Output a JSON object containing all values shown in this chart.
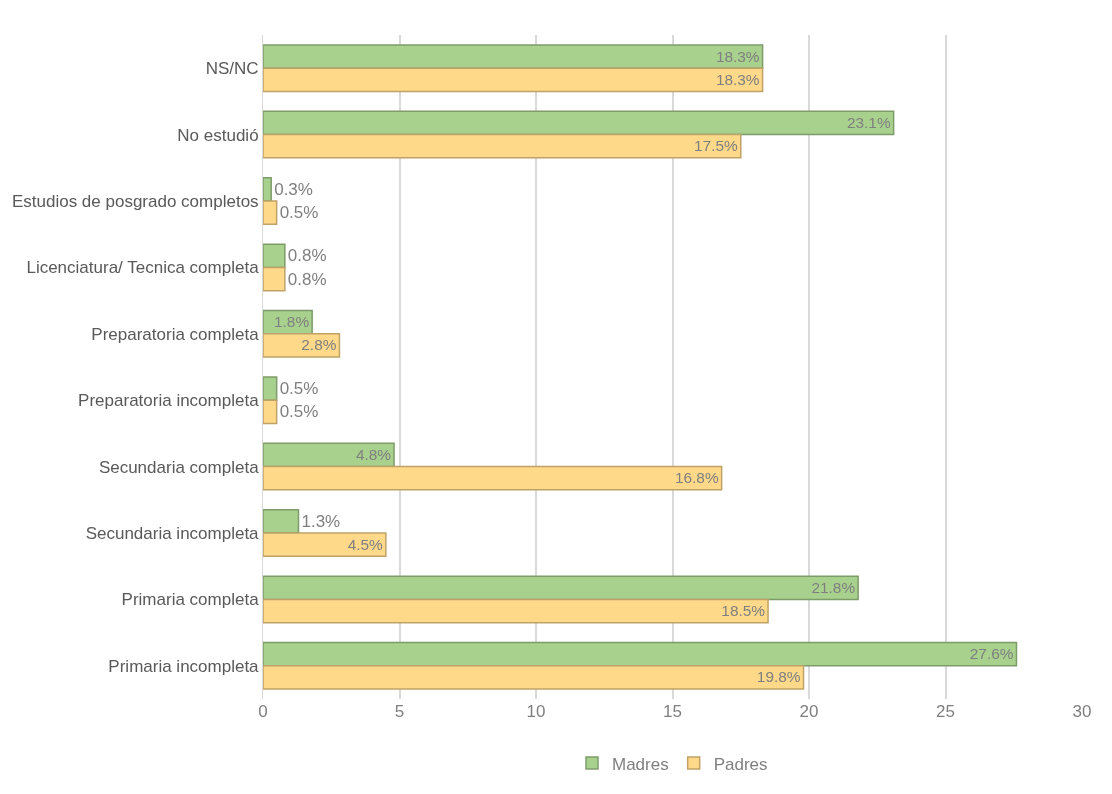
{
  "chart_data": {
    "type": "bar",
    "orientation": "horizontal",
    "categories": [
      "NS/NC",
      "No estudió",
      "Estudios de posgrado completos",
      "Licenciatura/ Tecnica completa",
      "Preparatoria completa",
      "Preparatoria incompleta",
      "Secundaria completa",
      "Secundaria incompleta",
      "Primaria completa",
      "Primaria incompleta"
    ],
    "series": [
      {
        "name": "Madres",
        "color": "#a9d18e",
        "values": [
          18.3,
          23.1,
          0.3,
          0.8,
          1.8,
          0.5,
          4.8,
          1.3,
          21.8,
          27.6
        ],
        "value_labels": [
          "18.3%",
          "23.1%",
          "0.3%",
          "0.8%",
          "1.8%",
          "0.5%",
          "4.8%",
          "1.3%",
          "21.8%",
          "27.6%"
        ]
      },
      {
        "name": "Padres",
        "color": "#ffd98a",
        "values": [
          18.3,
          17.5,
          0.5,
          0.8,
          2.8,
          0.5,
          16.8,
          4.5,
          18.5,
          19.8
        ],
        "value_labels": [
          "18.3%",
          "17.5%",
          "0.5%",
          "0.8%",
          "2.8%",
          "0.5%",
          "16.8%",
          "4.5%",
          "18.5%",
          "19.8%"
        ]
      }
    ],
    "xlim": [
      0,
      30
    ],
    "xticks": [
      0,
      5,
      10,
      15,
      20,
      25,
      30
    ],
    "grid": "x",
    "legend": "bottom"
  }
}
